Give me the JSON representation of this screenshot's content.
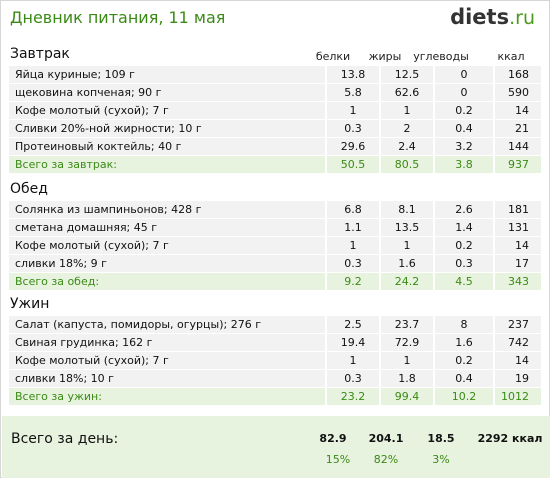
{
  "header": {
    "title": "Дневник питания, 11 мая",
    "logo_main": "diets",
    "logo_tld": ".ru"
  },
  "columns": {
    "protein": "белки",
    "fat": "жиры",
    "carbs": "углеводы",
    "kcal": "ккал"
  },
  "sections": [
    {
      "title": "Завтрак",
      "rows": [
        {
          "name": "Яйца куриные; 109 г",
          "protein": "13.8",
          "fat": "12.5",
          "carbs": "0",
          "kcal": "168"
        },
        {
          "name": "щековина копченая; 90 г",
          "protein": "5.8",
          "fat": "62.6",
          "carbs": "0",
          "kcal": "590"
        },
        {
          "name": "Кофе молотый (сухой); 7 г",
          "protein": "1",
          "fat": "1",
          "carbs": "0.2",
          "kcal": "14"
        },
        {
          "name": "Сливки 20%-ной жирности; 10 г",
          "protein": "0.3",
          "fat": "2",
          "carbs": "0.4",
          "kcal": "21"
        },
        {
          "name": "Протеиновый коктейль; 40 г",
          "protein": "29.6",
          "fat": "2.4",
          "carbs": "3.2",
          "kcal": "144"
        }
      ],
      "total": {
        "name": "Всего за завтрак:",
        "protein": "50.5",
        "fat": "80.5",
        "carbs": "3.8",
        "kcal": "937"
      }
    },
    {
      "title": "Обед",
      "rows": [
        {
          "name": "Солянка из шампиньонов; 428 г",
          "protein": "6.8",
          "fat": "8.1",
          "carbs": "2.6",
          "kcal": "181"
        },
        {
          "name": "сметана домашняя; 45 г",
          "protein": "1.1",
          "fat": "13.5",
          "carbs": "1.4",
          "kcal": "131"
        },
        {
          "name": "Кофе молотый (сухой); 7 г",
          "protein": "1",
          "fat": "1",
          "carbs": "0.2",
          "kcal": "14"
        },
        {
          "name": "сливки 18%; 9 г",
          "protein": "0.3",
          "fat": "1.6",
          "carbs": "0.3",
          "kcal": "17"
        }
      ],
      "total": {
        "name": "Всего за обед:",
        "protein": "9.2",
        "fat": "24.2",
        "carbs": "4.5",
        "kcal": "343"
      }
    },
    {
      "title": "Ужин",
      "rows": [
        {
          "name": "Салат (капуста, помидоры, огурцы); 276 г",
          "protein": "2.5",
          "fat": "23.7",
          "carbs": "8",
          "kcal": "237"
        },
        {
          "name": "Свиная грудинка; 162 г",
          "protein": "19.4",
          "fat": "72.9",
          "carbs": "1.6",
          "kcal": "742"
        },
        {
          "name": "Кофе молотый (сухой); 7 г",
          "protein": "1",
          "fat": "1",
          "carbs": "0.2",
          "kcal": "14"
        },
        {
          "name": "сливки 18%; 10 г",
          "protein": "0.3",
          "fat": "1.8",
          "carbs": "0.4",
          "kcal": "19"
        }
      ],
      "total": {
        "name": "Всего за ужин:",
        "protein": "23.2",
        "fat": "99.4",
        "carbs": "10.2",
        "kcal": "1012"
      }
    }
  ],
  "day": {
    "label": "Всего за день:",
    "protein": "82.9",
    "fat": "204.1",
    "carbs": "18.5",
    "kcal": "2292 ккал",
    "protein_pct": "15%",
    "fat_pct": "82%",
    "carbs_pct": "3%"
  },
  "colors": {
    "accent_green": "#3b8a16",
    "row_gray": "#f2f2f2",
    "total_green_bg": "#e7f3df"
  }
}
